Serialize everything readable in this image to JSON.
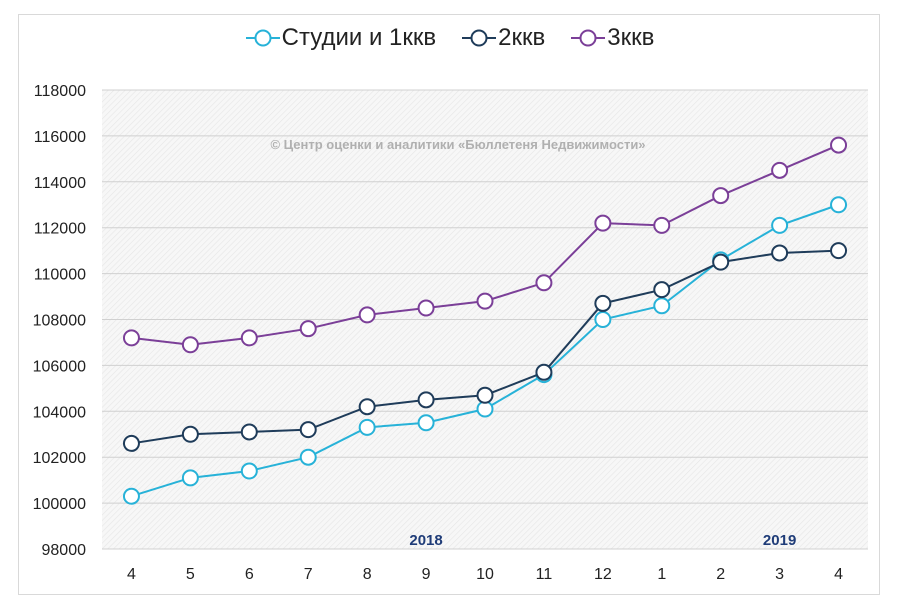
{
  "chart_data": {
    "type": "line",
    "categories": [
      "4",
      "5",
      "6",
      "7",
      "8",
      "9",
      "10",
      "11",
      "12",
      "1",
      "2",
      "3",
      "4"
    ],
    "year_labels": [
      {
        "text": "2018",
        "at_category_index": 5
      },
      {
        "text": "2019",
        "at_category_index": 11
      }
    ],
    "watermark": "© Центр оценки и аналитики «Бюллетеня Недвижимости»",
    "ylim": [
      98000,
      118000
    ],
    "yticks": [
      98000,
      100000,
      102000,
      104000,
      106000,
      108000,
      110000,
      112000,
      114000,
      116000,
      118000
    ],
    "grid": true,
    "legend_position": "top",
    "series": [
      {
        "name": "Студии и 1ккв",
        "color": "#27b2d8",
        "values": [
          100300,
          101100,
          101400,
          102000,
          103300,
          103500,
          104100,
          105600,
          108000,
          108600,
          110600,
          112100,
          113000
        ]
      },
      {
        "name": "2ккв",
        "color": "#1f3c5a",
        "values": [
          102600,
          103000,
          103100,
          103200,
          104200,
          104500,
          104700,
          105700,
          108700,
          109300,
          110500,
          110900,
          111000
        ]
      },
      {
        "name": "3ккв",
        "color": "#7b3f98",
        "values": [
          107200,
          106900,
          107200,
          107600,
          108200,
          108500,
          108800,
          109600,
          112200,
          112100,
          113400,
          114500,
          115600
        ]
      }
    ]
  }
}
